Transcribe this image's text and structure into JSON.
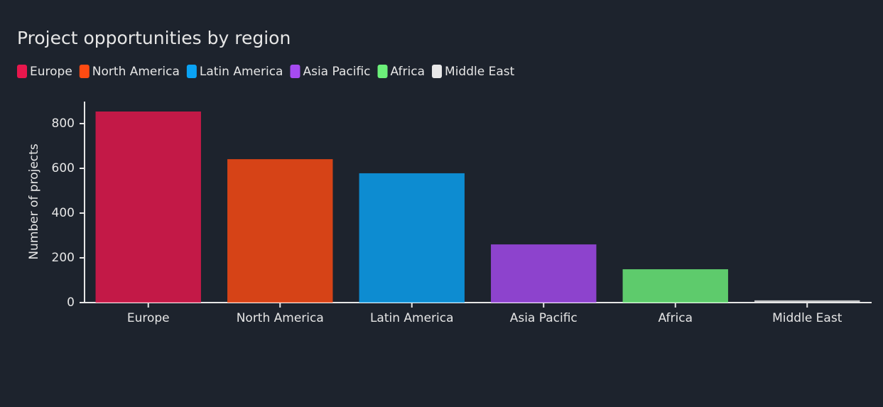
{
  "chart_data": {
    "type": "bar",
    "title": "Project opportunities by region",
    "categories": [
      "Europe",
      "North America",
      "Latin America",
      "Asia Pacific",
      "Africa",
      "Middle East"
    ],
    "values": [
      854,
      641,
      578,
      260,
      149,
      10
    ],
    "colors": [
      "#e8174d",
      "#ff4b12",
      "#0aa3f5",
      "#a64bf0",
      "#6cf07a",
      "#e8e8e8"
    ],
    "y_label": "Number of projects",
    "ylim": [
      0,
      900
    ],
    "yticks": [
      0,
      200,
      400,
      600,
      800
    ]
  }
}
